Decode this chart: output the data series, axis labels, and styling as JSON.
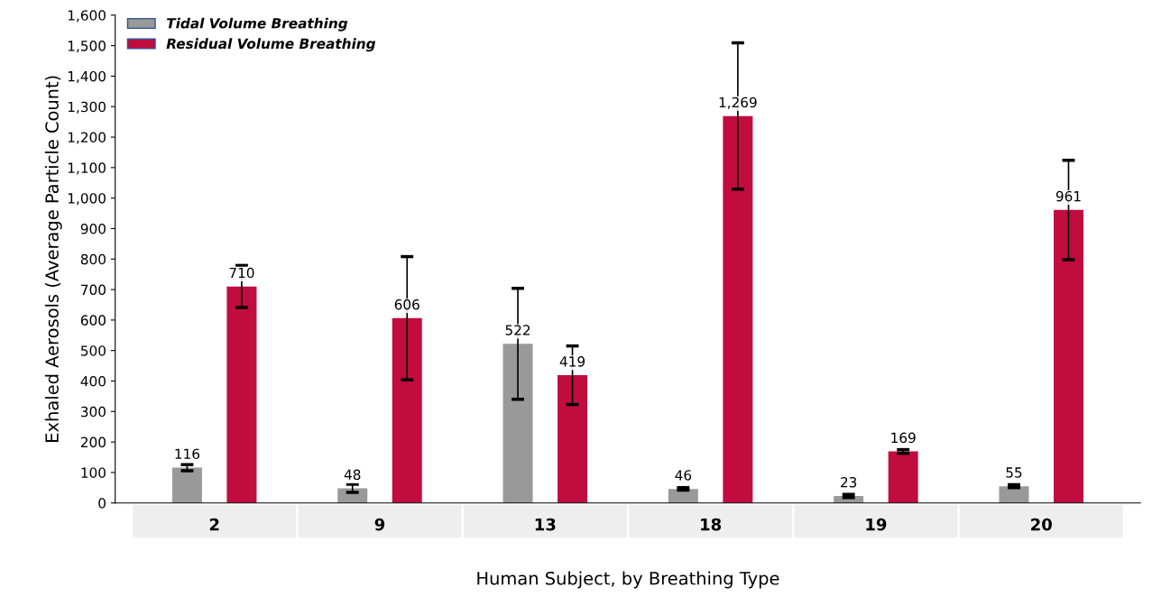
{
  "chart_data": {
    "type": "bar",
    "xlabel": "Human Subject, by Breathing Type",
    "ylabel": "Exhaled Aerosols (Average Particle Count)",
    "categories": [
      "2",
      "9",
      "13",
      "18",
      "19",
      "20"
    ],
    "series": [
      {
        "name": "Tidal Volume Breathing",
        "color": "#999999",
        "values": [
          116,
          48,
          522,
          46,
          23,
          55
        ],
        "errors": [
          10,
          13,
          182,
          4,
          5,
          5
        ],
        "value_labels": [
          "116",
          "48",
          "522",
          "46",
          "23",
          "55"
        ]
      },
      {
        "name": "Residual Volume Breathing",
        "color": "#c00c3f",
        "values": [
          710,
          606,
          419,
          1269,
          169,
          961
        ],
        "errors": [
          69,
          202,
          96,
          240,
          6,
          163
        ],
        "value_labels": [
          "710",
          "606",
          "419",
          "1,269",
          "169",
          "961"
        ]
      }
    ],
    "ylim": [
      0,
      1600
    ],
    "yticks": [
      0,
      100,
      200,
      300,
      400,
      500,
      600,
      700,
      800,
      900,
      {
        "value": 1000,
        "label": "1,000"
      },
      {
        "value": 1100,
        "label": "1,100"
      },
      {
        "value": 1200,
        "label": "1,200"
      },
      {
        "value": 1300,
        "label": "1,300"
      },
      {
        "value": 1400,
        "label": "1,400"
      },
      {
        "value": 1500,
        "label": "1,500"
      },
      {
        "value": 1600,
        "label": "1,600"
      }
    ],
    "grid": false,
    "legend": "top left"
  }
}
